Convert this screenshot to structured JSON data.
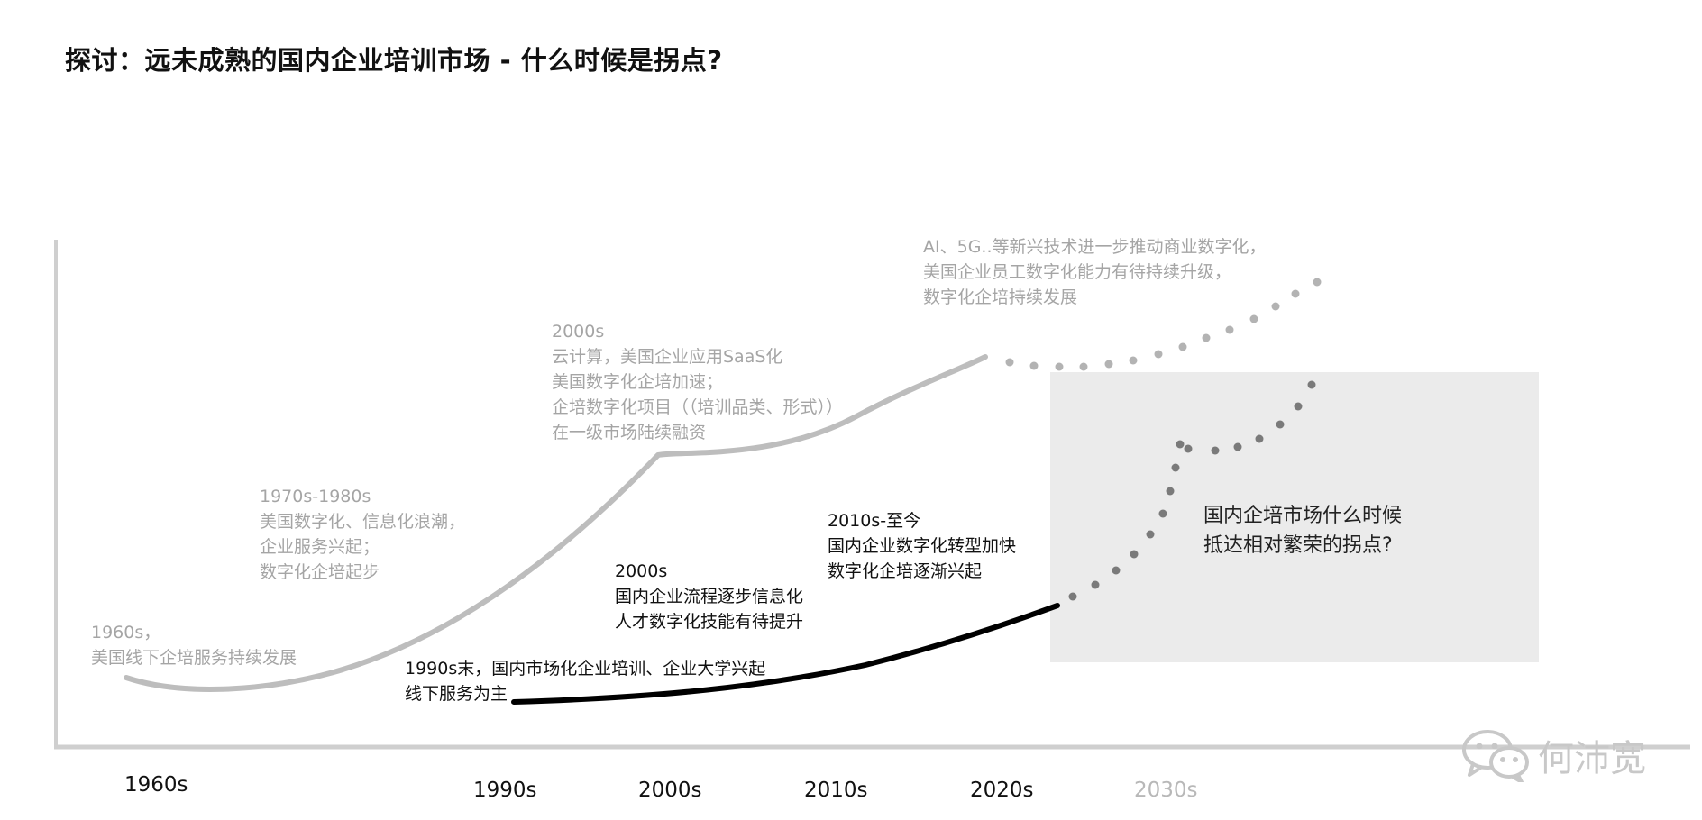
{
  "title": "探讨：远未成熟的国内企业培训市场 - 什么时候是拐点?",
  "colors": {
    "us_curve": "#bdbdbd",
    "cn_curve": "#000000",
    "future_us_dots": "#b3b3b3",
    "future_cn_dots": "#7a7a7a",
    "box_fill": "#ebebeb",
    "axis": "#cfcfcf"
  },
  "annotations": {
    "us_1960s": "1960s，\n美国线下企培服务持续发展",
    "us_1970s": "1970s-1980s\n美国数字化、信息化浪潮，\n企业服务兴起；\n数字化企培起步",
    "us_2000s": "2000s\n云计算，美国企业应用SaaS化\n美国数字化企培加速；\n企培数字化项目（（培训品类、形式））\n在一级市场陆续融资",
    "us_future": "AI、5G..等新兴技术进一步推动商业数字化，\n美国企业员工数字化能力有待持续升级，\n数字化企培持续发展",
    "cn_1990s": "1990s末，国内市场化企业培训、企业大学兴起\n线下服务为主",
    "cn_2000s": "2000s\n国内企业流程逐步信息化\n人才数字化技能有待提升",
    "cn_2010s": "2010s-至今\n国内企业数字化转型加快\n数字化企培逐渐兴起",
    "box_question": "国内企培市场什么时候\n抵达相对繁荣的拐点?"
  },
  "timeline": {
    "ticks": [
      "1960s",
      "1990s",
      "2000s",
      "2010s",
      "2020s",
      "2030s"
    ],
    "future_tick": "2030s"
  },
  "watermark": {
    "icon": "wechat-icon",
    "text": "何沛宽"
  }
}
